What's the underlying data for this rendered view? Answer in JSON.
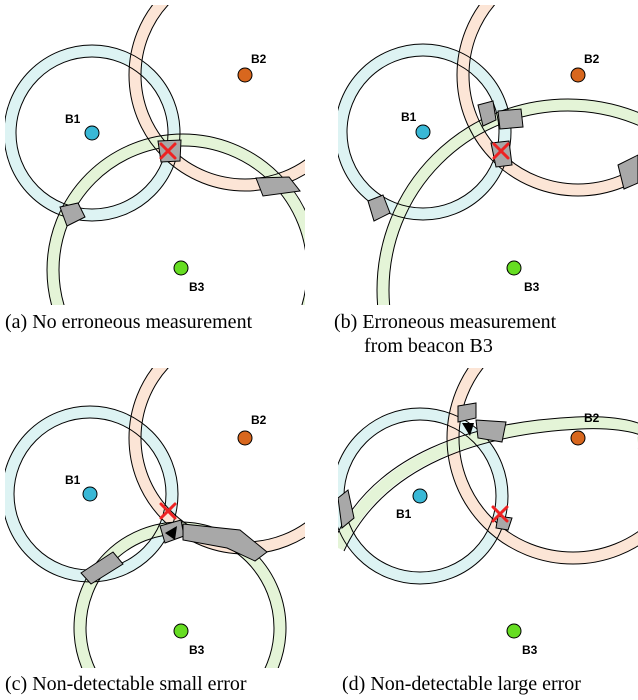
{
  "colors": {
    "b1": "#39b8d6",
    "b2": "#d8671e",
    "b3": "#66dd22",
    "ring1_fill": "#ddf3f3",
    "ring2_fill": "#fce5d6",
    "ring3_fill": "#e4f4d7",
    "overlap_fill": "#a8a8a8",
    "marker": "#ee2222"
  },
  "beacons": {
    "b1_label": "B1",
    "b2_label": "B2",
    "b3_label": "B3"
  },
  "panels": [
    {
      "id": "a",
      "caption": "(a) No erroneous measurement",
      "caption_line2": ""
    },
    {
      "id": "b",
      "caption": "(b) Erroneous measurement",
      "caption_line2": "from beacon B3"
    },
    {
      "id": "c",
      "caption": "(c) Non-detectable small error",
      "caption_line2": ""
    },
    {
      "id": "d",
      "caption": "(d) Non-detectable large error",
      "caption_line2": ""
    }
  ]
}
